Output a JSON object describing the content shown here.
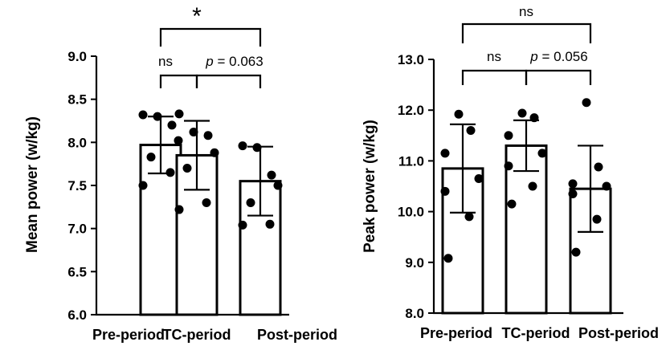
{
  "chart_data": [
    {
      "type": "bar",
      "categories": [
        "Pre-period",
        "TC-period",
        "Post-period"
      ],
      "ylabel": "Mean power (w/kg)",
      "xlabel": "",
      "ylim": [
        6.0,
        9.0
      ],
      "yticks": [
        "6.0",
        "6.5",
        "7.0",
        "7.5",
        "8.0",
        "8.5",
        "9.0"
      ],
      "grid": false,
      "values": [
        7.97,
        7.85,
        7.55
      ],
      "error": [
        0.33,
        0.4,
        0.4
      ],
      "points": [
        [
          8.32,
          8.3,
          8.2,
          8.02,
          7.83,
          7.65,
          7.5
        ],
        [
          8.33,
          8.12,
          8.08,
          7.88,
          7.7,
          7.3,
          7.22
        ],
        [
          7.96,
          7.94,
          7.62,
          7.5,
          7.3,
          7.05,
          7.04
        ]
      ],
      "comparisons": [
        {
          "from": 0,
          "to": 2,
          "label": "*"
        },
        {
          "from": 0,
          "to": 1,
          "label": "ns"
        },
        {
          "from": 1,
          "to": 2,
          "label_prefix": "p",
          "label": " = 0.063"
        }
      ]
    },
    {
      "type": "bar",
      "categories": [
        "Pre-period",
        "TC-period",
        "Post-period"
      ],
      "ylabel": "Peak power (w/kg)",
      "xlabel": "",
      "ylim": [
        8.0,
        13.0
      ],
      "yticks": [
        "8.0",
        "9.0",
        "10.0",
        "11.0",
        "12.0",
        "13.0"
      ],
      "grid": false,
      "values": [
        10.85,
        11.3,
        10.45
      ],
      "error": [
        0.87,
        0.5,
        0.85
      ],
      "points": [
        [
          11.92,
          11.6,
          11.15,
          10.65,
          10.4,
          9.9,
          9.08
        ],
        [
          11.94,
          11.85,
          11.5,
          11.15,
          10.9,
          10.5,
          10.15
        ],
        [
          12.15,
          10.88,
          10.55,
          10.5,
          10.35,
          9.85,
          9.2
        ]
      ],
      "comparisons": [
        {
          "from": 0,
          "to": 2,
          "label": "ns"
        },
        {
          "from": 0,
          "to": 1,
          "label": "ns"
        },
        {
          "from": 1,
          "to": 2,
          "label_prefix": "p",
          "label": " = 0.056"
        }
      ]
    }
  ]
}
